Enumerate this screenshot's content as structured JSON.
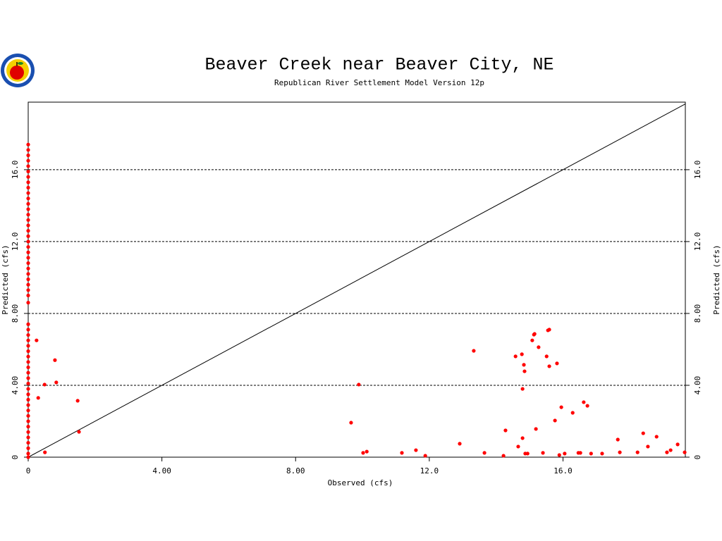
{
  "chart_data": {
    "type": "scatter",
    "title": "Beaver Creek near Beaver City, NE",
    "subtitle": "Republican River Settlement Model Version 12p",
    "x_label": "Observed (cfs)",
    "y_label": "Predicted (cfs)",
    "y2_label": "Predicted (cfs)",
    "color": "#ff0000",
    "grid": true,
    "xlim": [
      0,
      19.66
    ],
    "ylim": [
      0,
      19.76
    ],
    "xticks": [
      0,
      {
        "value": 4,
        "label": "4.00"
      },
      {
        "value": 8,
        "label": "8.00"
      },
      {
        "value": 12,
        "label": "12.0"
      },
      {
        "value": 16,
        "label": "16.0"
      }
    ],
    "yticks": [
      0,
      {
        "value": 4,
        "label": "4.00"
      },
      {
        "value": 8,
        "label": "8.00"
      },
      {
        "value": 12,
        "label": "12.0"
      },
      {
        "value": 16,
        "label": "16.0"
      }
    ],
    "x": [
      0,
      0,
      0,
      0,
      0,
      0,
      0,
      0,
      0,
      0,
      0,
      0,
      0,
      0,
      0,
      0,
      0,
      0,
      0,
      0,
      0,
      0,
      0,
      0,
      0,
      0,
      0,
      0,
      0,
      0,
      0,
      0,
      0,
      0,
      0,
      0,
      0,
      0,
      0,
      0,
      0,
      0,
      0,
      0,
      0,
      0,
      0,
      0,
      0,
      0,
      0,
      0,
      0,
      0,
      0,
      0,
      0.25,
      0.3,
      0.49,
      0.5,
      0.8,
      0.84,
      1.48,
      1.52,
      9.66,
      9.89,
      10.02,
      10.13,
      11.18,
      11.6,
      11.88,
      12.91,
      13.33,
      13.65,
      14.22,
      14.28,
      14.58,
      14.66,
      14.77,
      14.79,
      14.79,
      14.83,
      14.85,
      14.87,
      14.94,
      15.08,
      15.13,
      15.15,
      15.19,
      15.27,
      15.4,
      15.51,
      15.55,
      15.59,
      15.59,
      15.76,
      15.82,
      15.89,
      15.95,
      16.05,
      16.29,
      16.46,
      16.52,
      16.62,
      16.73,
      16.84,
      17.17,
      17.64,
      17.7,
      18.23,
      18.4,
      18.54,
      18.8,
      19.11,
      19.22,
      19.43,
      19.64
    ],
    "values": [
      0.0,
      0.2,
      0.5,
      0.8,
      1.1,
      1.4,
      1.7,
      2.0,
      2.3,
      2.6,
      2.9,
      3.2,
      3.5,
      3.8,
      4.1,
      4.4,
      4.7,
      5.0,
      5.3,
      5.6,
      5.9,
      6.2,
      6.5,
      6.8,
      7.1,
      7.4,
      8.6,
      9.0,
      9.3,
      9.6,
      9.9,
      10.2,
      10.5,
      10.8,
      11.1,
      11.4,
      11.7,
      12.0,
      12.3,
      12.6,
      12.9,
      13.2,
      13.5,
      13.8,
      14.1,
      14.4,
      14.7,
      15.0,
      15.3,
      15.6,
      15.9,
      16.2,
      16.5,
      16.8,
      17.1,
      17.4,
      6.5,
      3.3,
      4.04,
      0.27,
      5.4,
      4.16,
      3.14,
      1.41,
      1.92,
      4.04,
      0.24,
      0.31,
      0.24,
      0.39,
      0.08,
      0.75,
      5.92,
      0.24,
      0.08,
      1.49,
      5.61,
      0.59,
      5.73,
      1.06,
      3.8,
      5.14,
      4.78,
      0.2,
      0.2,
      6.5,
      6.82,
      6.86,
      1.57,
      6.12,
      0.24,
      5.61,
      7.06,
      7.1,
      5.06,
      2.04,
      5.22,
      0.12,
      2.78,
      0.2,
      2.47,
      0.24,
      0.24,
      3.06,
      2.86,
      0.2,
      0.2,
      0.98,
      0.27,
      0.27,
      1.33,
      0.59,
      1.14,
      0.27,
      0.39,
      0.71,
      0.27
    ]
  }
}
